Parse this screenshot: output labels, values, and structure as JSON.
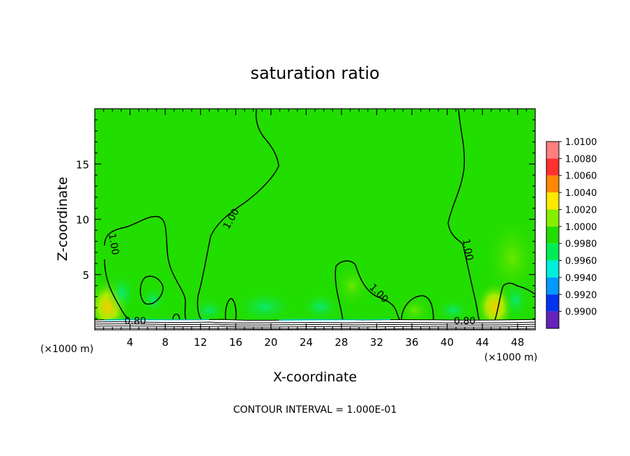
{
  "chart_data": {
    "type": "heatmap",
    "title": "saturation ratio",
    "xlabel": "X-coordinate",
    "ylabel": "Z-coordinate",
    "x_unit_left": "(×1000 m)",
    "x_unit_right": "(×1000 m)",
    "xlim": [
      0,
      50
    ],
    "ylim": [
      0,
      20
    ],
    "x_ticks": [
      4,
      8,
      12,
      16,
      20,
      24,
      28,
      32,
      36,
      40,
      44,
      48
    ],
    "y_ticks": [
      5,
      10,
      15
    ],
    "footer": "CONTOUR INTERVAL = 1.000E-01",
    "contour_labels": [
      {
        "text": "1.00",
        "x": 1.8,
        "z": 7.7
      },
      {
        "text": "1.00",
        "x": 15.8,
        "z": 9.9
      },
      {
        "text": "1.00",
        "x": 32.0,
        "z": 3.1
      },
      {
        "text": "1.00",
        "x": 42.0,
        "z": 7.2
      },
      {
        "text": "0.80",
        "x": 4.6,
        "z": 0.5
      },
      {
        "text": "0.80",
        "x": 42.0,
        "z": 0.5
      }
    ],
    "colorbar": {
      "labels": [
        "1.0100",
        "1.0080",
        "1.0060",
        "1.0040",
        "1.0020",
        "1.0000",
        "0.9980",
        "0.9960",
        "0.9940",
        "0.9920",
        "0.9900"
      ],
      "colors": [
        "#ff7f7f",
        "#ff3030",
        "#ff8800",
        "#ffe800",
        "#88ee00",
        "#22dd00",
        "#00ee55",
        "#00eedd",
        "#0099ff",
        "#0033ee",
        "#6622bb"
      ]
    }
  }
}
